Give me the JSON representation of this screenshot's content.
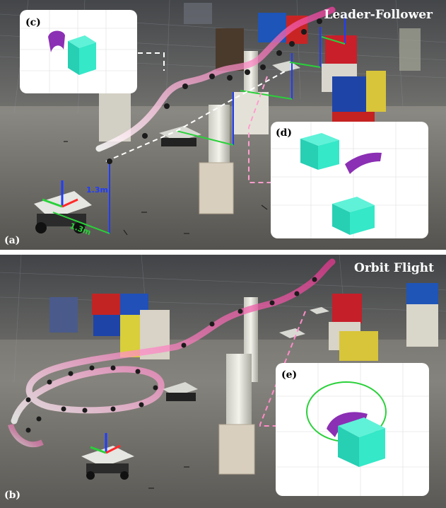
{
  "panels": [
    {
      "label": "(a)",
      "title": "Leader-Follower",
      "insets": [
        {
          "label": "(c)"
        },
        {
          "label": "(d)"
        }
      ],
      "measurements": {
        "vertical": "1.3m",
        "horizontal": "1.3m"
      },
      "colors": {
        "trajectory": "#ff9ecf",
        "vertical_axis": "#1f3cff",
        "horizontal_axis": "#2ad13a",
        "voxel": "#34e8c8",
        "tube": "#8b2fb4"
      }
    },
    {
      "label": "(b)",
      "title": "Orbit Flight",
      "insets": [
        {
          "label": "(e)"
        }
      ],
      "colors": {
        "trajectory": "#ff8cc8",
        "orbit_circle": "#2ad13a",
        "voxel": "#34e8c8",
        "tube": "#8b2fb4"
      }
    }
  ]
}
